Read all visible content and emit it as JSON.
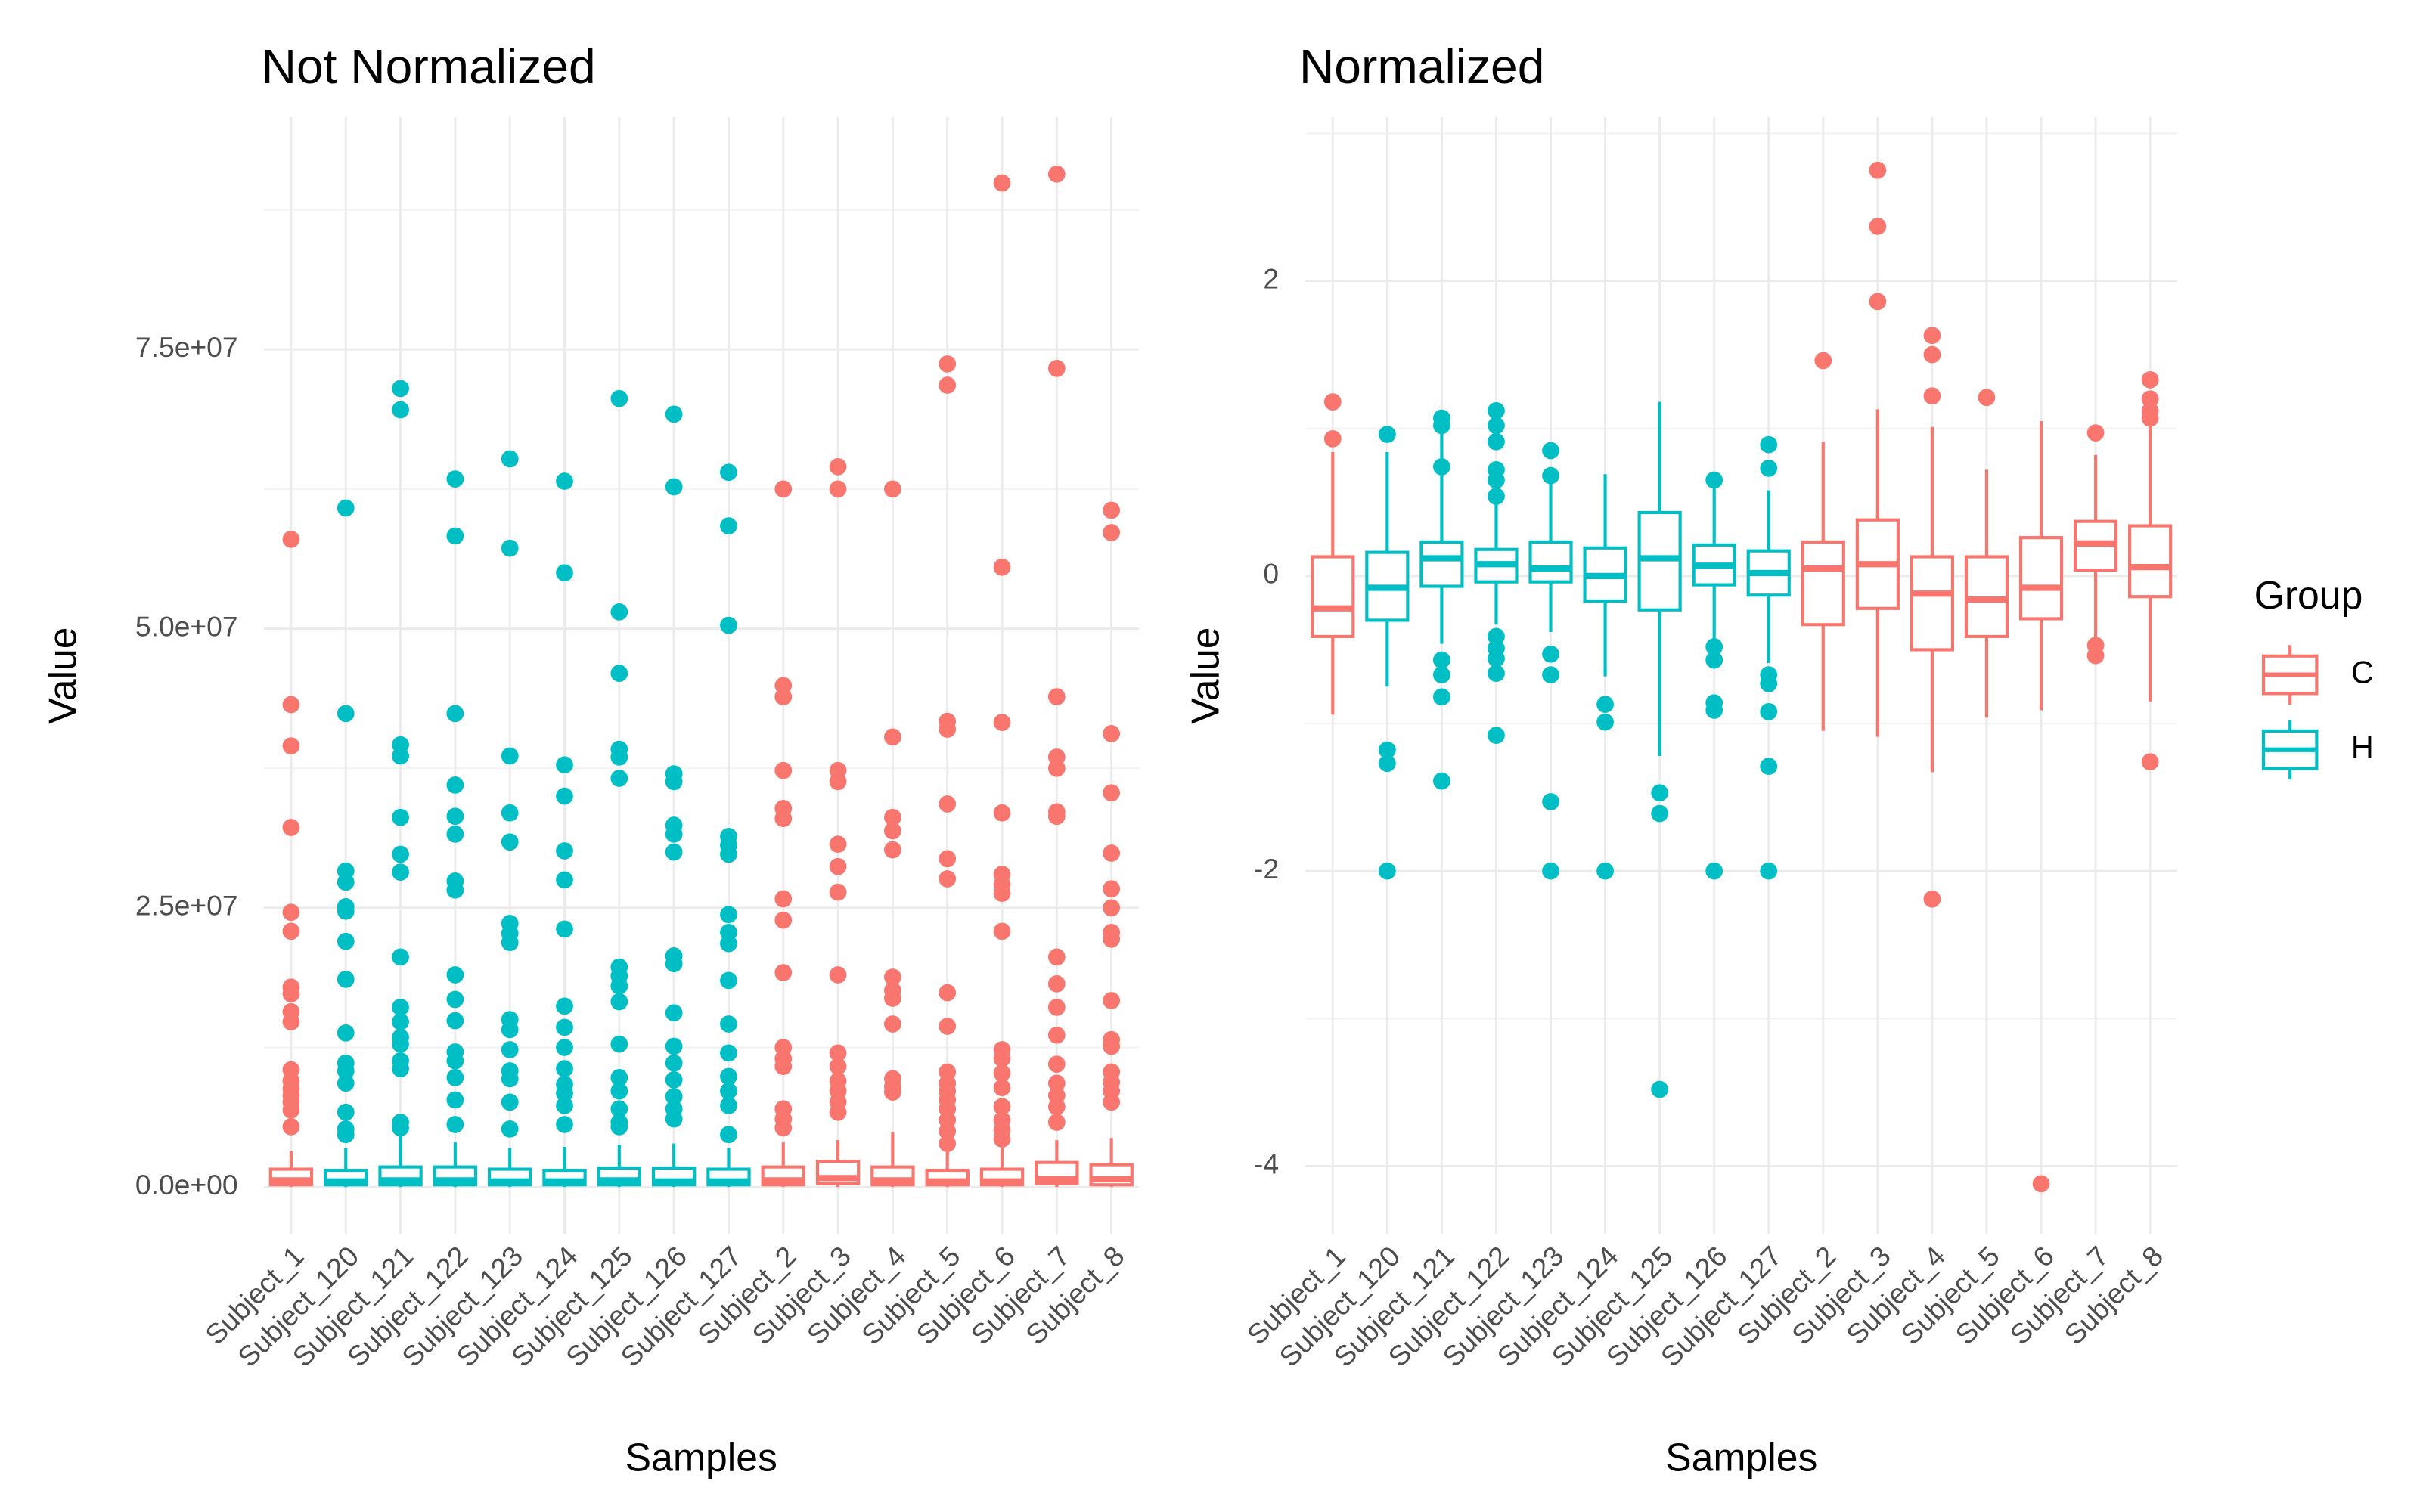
{
  "chart_data": [
    {
      "type": "box",
      "title": "Not Normalized",
      "x_label": "Samples",
      "y_label": "Value",
      "categories": [
        "Subject_1",
        "Subject_120",
        "Subject_121",
        "Subject_122",
        "Subject_123",
        "Subject_124",
        "Subject_125",
        "Subject_126",
        "Subject_127",
        "Subject_2",
        "Subject_3",
        "Subject_4",
        "Subject_5",
        "Subject_6",
        "Subject_7",
        "Subject_8"
      ],
      "group": [
        "C",
        "H",
        "H",
        "H",
        "H",
        "H",
        "H",
        "H",
        "H",
        "C",
        "C",
        "C",
        "C",
        "C",
        "C",
        "C"
      ],
      "series": [
        {
          "name": "C",
          "color": "#F8766D"
        },
        {
          "name": "H",
          "color": "#00BFC4"
        }
      ],
      "legend": false,
      "grid": true,
      "ylim": [
        -4200000,
        95800000
      ],
      "yticks": [
        {
          "value": 0,
          "label": "0.0e+00"
        },
        {
          "value": 25000000,
          "label": "2.5e+07"
        },
        {
          "value": 50000000,
          "label": "5.0e+07"
        },
        {
          "value": 75000000,
          "label": "7.5e+07"
        }
      ],
      "boxes": [
        {
          "min": 0,
          "q1": 200000,
          "median": 600000,
          "q3": 1600000,
          "max": 3200000,
          "outliers": [
            58000000,
            43200000,
            39500000,
            32200000,
            24600000,
            22900000,
            17900000,
            17300000,
            15700000,
            14800000,
            10500000,
            9500000,
            8800000,
            8200000,
            7600000,
            6900000,
            5400000
          ]
        },
        {
          "min": 0,
          "q1": 200000,
          "median": 500000,
          "q3": 1500000,
          "max": 3500000,
          "outliers": [
            60800000,
            42400000,
            28300000,
            27300000,
            25100000,
            24700000,
            22000000,
            18600000,
            13800000,
            11100000,
            10400000,
            9300000,
            6700000,
            5200000,
            4700000
          ]
        },
        {
          "min": 0,
          "q1": 200000,
          "median": 600000,
          "q3": 1800000,
          "max": 5000000,
          "outliers": [
            71500000,
            69600000,
            39600000,
            38600000,
            33100000,
            29800000,
            28200000,
            20600000,
            16100000,
            14800000,
            13400000,
            12800000,
            11300000,
            10600000,
            5800000,
            5300000
          ]
        },
        {
          "min": 0,
          "q1": 200000,
          "median": 600000,
          "q3": 1800000,
          "max": 4000000,
          "outliers": [
            63400000,
            58300000,
            42400000,
            36000000,
            33200000,
            31600000,
            27400000,
            26600000,
            19000000,
            16800000,
            14900000,
            12100000,
            11300000,
            9800000,
            7800000,
            5600000
          ]
        },
        {
          "min": 0,
          "q1": 200000,
          "median": 500000,
          "q3": 1600000,
          "max": 3500000,
          "outliers": [
            65200000,
            57200000,
            38600000,
            33500000,
            30900000,
            23600000,
            22700000,
            21900000,
            15000000,
            14100000,
            12300000,
            10400000,
            9700000,
            7600000,
            5200000
          ]
        },
        {
          "min": 0,
          "q1": 200000,
          "median": 500000,
          "q3": 1500000,
          "max": 3600000,
          "outliers": [
            63200000,
            55000000,
            37800000,
            35000000,
            30100000,
            27500000,
            23100000,
            16200000,
            14300000,
            12500000,
            10600000,
            9200000,
            8400000,
            7300000,
            5600000
          ]
        },
        {
          "min": 0,
          "q1": 200000,
          "median": 600000,
          "q3": 1700000,
          "max": 3800000,
          "outliers": [
            70600000,
            51500000,
            46000000,
            39200000,
            38500000,
            36600000,
            19700000,
            18900000,
            18000000,
            16600000,
            12800000,
            9800000,
            8600000,
            7000000,
            5800000,
            5400000
          ]
        },
        {
          "min": 0,
          "q1": 200000,
          "median": 500000,
          "q3": 1700000,
          "max": 3900000,
          "outliers": [
            69200000,
            62700000,
            37000000,
            36300000,
            32400000,
            31600000,
            30000000,
            20700000,
            20000000,
            15600000,
            12600000,
            11100000,
            9600000,
            8100000,
            7000000,
            6100000
          ]
        },
        {
          "min": 0,
          "q1": 200000,
          "median": 500000,
          "q3": 1600000,
          "max": 3500000,
          "outliers": [
            64000000,
            59200000,
            50300000,
            31400000,
            30600000,
            29800000,
            24400000,
            22800000,
            21800000,
            18500000,
            14600000,
            12000000,
            9900000,
            8600000,
            7300000,
            4700000
          ]
        },
        {
          "min": 0,
          "q1": 200000,
          "median": 600000,
          "q3": 1800000,
          "max": 4000000,
          "outliers": [
            62500000,
            44900000,
            43900000,
            37300000,
            33900000,
            33000000,
            25800000,
            23900000,
            19200000,
            12500000,
            11500000,
            10800000,
            7000000,
            6100000,
            5300000
          ]
        },
        {
          "min": 0,
          "q1": 300000,
          "median": 800000,
          "q3": 2300000,
          "max": 4200000,
          "outliers": [
            64500000,
            62500000,
            37300000,
            36300000,
            30700000,
            28700000,
            26400000,
            19000000,
            12000000,
            10800000,
            9500000,
            8600000,
            7600000,
            6700000
          ]
        },
        {
          "min": 0,
          "q1": 200000,
          "median": 600000,
          "q3": 1800000,
          "max": 4900000,
          "outliers": [
            62500000,
            40300000,
            33100000,
            31900000,
            30200000,
            18800000,
            17600000,
            16900000,
            14600000,
            9700000,
            9000000,
            8500000
          ]
        },
        {
          "min": 0,
          "q1": 200000,
          "median": 500000,
          "q3": 1500000,
          "max": 3300000,
          "outliers": [
            73700000,
            71800000,
            41700000,
            41000000,
            34300000,
            29400000,
            27600000,
            17400000,
            14400000,
            10300000,
            9300000,
            8600000,
            7800000,
            7000000,
            6000000,
            5000000,
            3900000
          ]
        },
        {
          "min": 0,
          "q1": 200000,
          "median": 500000,
          "q3": 1600000,
          "max": 3500000,
          "outliers": [
            89900000,
            55500000,
            41600000,
            33500000,
            28000000,
            27100000,
            26300000,
            22900000,
            12300000,
            11500000,
            10200000,
            8900000,
            7200000,
            6000000,
            5100000,
            4300000
          ]
        },
        {
          "min": 0,
          "q1": 300000,
          "median": 700000,
          "q3": 2200000,
          "max": 4200000,
          "outliers": [
            90700000,
            73300000,
            43900000,
            38500000,
            37500000,
            33600000,
            33200000,
            20600000,
            18200000,
            16100000,
            13600000,
            11000000,
            9300000,
            8200000,
            7200000,
            5800000
          ]
        },
        {
          "min": 0,
          "q1": 200000,
          "median": 700000,
          "q3": 2000000,
          "max": 4400000,
          "outliers": [
            60600000,
            58600000,
            40600000,
            35300000,
            29900000,
            26700000,
            25000000,
            22800000,
            22200000,
            16700000,
            13200000,
            12600000,
            10300000,
            9400000,
            8600000,
            7600000
          ]
        }
      ]
    },
    {
      "type": "box",
      "title": "Normalized",
      "x_label": "Samples",
      "y_label": "Value",
      "categories": [
        "Subject_1",
        "Subject_120",
        "Subject_121",
        "Subject_122",
        "Subject_123",
        "Subject_124",
        "Subject_125",
        "Subject_126",
        "Subject_127",
        "Subject_2",
        "Subject_3",
        "Subject_4",
        "Subject_5",
        "Subject_6",
        "Subject_7",
        "Subject_8"
      ],
      "group": [
        "C",
        "H",
        "H",
        "H",
        "H",
        "H",
        "H",
        "H",
        "H",
        "C",
        "C",
        "C",
        "C",
        "C",
        "C",
        "C"
      ],
      "series": [
        {
          "name": "C",
          "color": "#F8766D"
        },
        {
          "name": "H",
          "color": "#00BFC4"
        }
      ],
      "legend": true,
      "legend_title": "Group",
      "grid": true,
      "ylim": [
        -4.46,
        3.11
      ],
      "yticks": [
        -4,
        -2,
        0,
        2
      ],
      "boxes": [
        {
          "min": -0.94,
          "q1": -0.41,
          "median": -0.22,
          "q3": 0.13,
          "max": 0.84,
          "outliers": [
            1.18,
            0.93
          ]
        },
        {
          "min": -0.75,
          "q1": -0.3,
          "median": -0.08,
          "q3": 0.16,
          "max": 0.84,
          "outliers": [
            0.96,
            -1.18,
            -1.27,
            -2
          ]
        },
        {
          "min": -0.46,
          "q1": -0.07,
          "median": 0.12,
          "q3": 0.23,
          "max": 0.97,
          "outliers": [
            1.07,
            1.02,
            0.74,
            -0.57,
            -0.67,
            -0.82,
            -1.39
          ]
        },
        {
          "min": -0.33,
          "q1": -0.04,
          "median": 0.08,
          "q3": 0.18,
          "max": 0.71,
          "outliers": [
            1.12,
            1.02,
            0.91,
            0.72,
            0.65,
            0.54,
            -0.41,
            -0.49,
            -0.56,
            -0.66,
            -1.08
          ]
        },
        {
          "min": -0.38,
          "q1": -0.04,
          "median": 0.05,
          "q3": 0.23,
          "max": 0.73,
          "outliers": [
            0.85,
            0.68,
            -0.53,
            -0.67,
            -1.53,
            -2
          ]
        },
        {
          "min": -0.68,
          "q1": -0.17,
          "median": 0,
          "q3": 0.19,
          "max": 0.69,
          "outliers": [
            -0.87,
            -0.99,
            -2
          ]
        },
        {
          "min": -1.22,
          "q1": -0.23,
          "median": 0.12,
          "q3": 0.43,
          "max": 1.18,
          "outliers": [
            -1.47,
            -1.61,
            -3.48
          ]
        },
        {
          "min": -0.43,
          "q1": -0.06,
          "median": 0.07,
          "q3": 0.21,
          "max": 0.6,
          "outliers": [
            0.65,
            -0.48,
            -0.57,
            -0.86,
            -0.91,
            -2
          ]
        },
        {
          "min": -0.59,
          "q1": -0.13,
          "median": 0.02,
          "q3": 0.17,
          "max": 0.58,
          "outliers": [
            0.89,
            0.73,
            -0.67,
            -0.73,
            -0.92,
            -1.29,
            -2
          ]
        },
        {
          "min": -1.05,
          "q1": -0.33,
          "median": 0.05,
          "q3": 0.23,
          "max": 0.91,
          "outliers": [
            1.46
          ]
        },
        {
          "min": -1.09,
          "q1": -0.22,
          "median": 0.08,
          "q3": 0.38,
          "max": 1.13,
          "outliers": [
            1.86,
            2.37,
            2.75
          ]
        },
        {
          "min": -1.33,
          "q1": -0.5,
          "median": -0.12,
          "q3": 0.13,
          "max": 1.01,
          "outliers": [
            1.63,
            1.5,
            1.22,
            -2.19
          ]
        },
        {
          "min": -0.96,
          "q1": -0.41,
          "median": -0.16,
          "q3": 0.13,
          "max": 0.72,
          "outliers": [
            1.21
          ]
        },
        {
          "min": -0.91,
          "q1": -0.29,
          "median": -0.08,
          "q3": 0.26,
          "max": 1.05,
          "outliers": [
            -4.12
          ]
        },
        {
          "min": -0.43,
          "q1": 0.04,
          "median": 0.22,
          "q3": 0.37,
          "max": 0.82,
          "outliers": [
            0.97,
            -0.47,
            -0.54
          ]
        },
        {
          "min": -0.85,
          "q1": -0.14,
          "median": 0.06,
          "q3": 0.34,
          "max": 1.05,
          "outliers": [
            1.33,
            1.2,
            1.12,
            1.07,
            -1.26
          ]
        }
      ]
    }
  ]
}
